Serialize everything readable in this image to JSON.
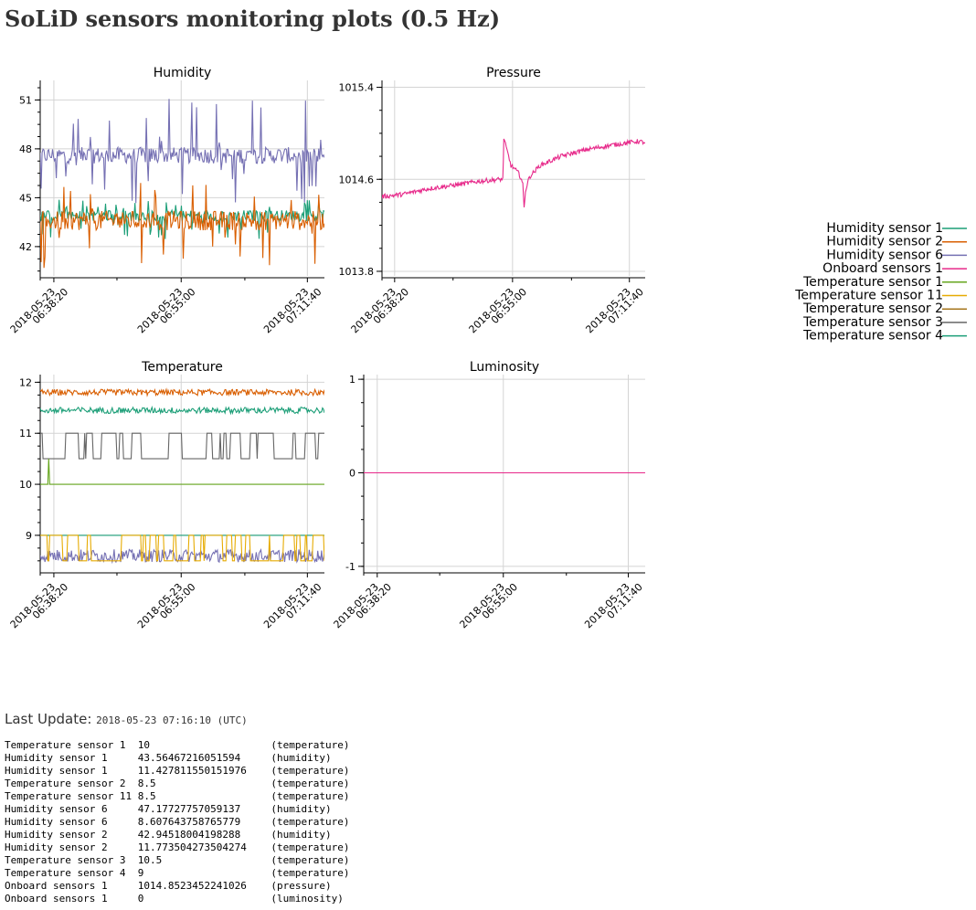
{
  "page": {
    "title": "SoLiD sensors monitoring plots (0.5 Hz)",
    "last_update_label": "Last Update:",
    "last_update_value": "2018-05-23 07:16:10 (UTC)"
  },
  "chart_data": [
    {
      "type": "line",
      "title": "Humidity",
      "ylim": [
        40.2,
        52.2
      ],
      "y_ticks": [
        "42",
        "45",
        "48",
        "51"
      ],
      "x_ticks": [
        [
          "2018-05-23",
          "06:38:20"
        ],
        [
          "2018-05-23",
          "06:55:00"
        ],
        [
          "2018-05-23",
          "07:11:40"
        ]
      ],
      "grid": true,
      "series": [
        {
          "name": "Humidity sensor 6",
          "color": "#7570b3",
          "base": 47.6,
          "noise": 0.5,
          "spikes_up": 3.5,
          "spikes_down": 3.0
        },
        {
          "name": "Humidity sensor 1",
          "color": "#1b9e77",
          "base": 43.9,
          "noise": 0.35,
          "spikes_up": 1.0,
          "spikes_down": 1.5
        },
        {
          "name": "Humidity sensor 2",
          "color": "#d95f02",
          "base": 43.6,
          "noise": 0.6,
          "spikes_up": 2.5,
          "spikes_down": 3.0
        }
      ]
    },
    {
      "type": "line",
      "title": "Pressure",
      "ylim": [
        1013.76,
        1015.46
      ],
      "y_ticks": [
        "1013.8",
        "1014.6",
        "1015.4"
      ],
      "x_ticks": [
        [
          "2018-05-23",
          "06:38:20"
        ],
        [
          "2018-05-23",
          "06:55:00"
        ],
        [
          "2018-05-23",
          "07:11:40"
        ]
      ],
      "grid": true,
      "series": [
        {
          "name": "Onboard sensors 1",
          "color": "#e7298a",
          "points": [
            [
              0.0,
              1014.45
            ],
            [
              0.08,
              1014.47
            ],
            [
              0.18,
              1014.52
            ],
            [
              0.28,
              1014.55
            ],
            [
              0.36,
              1014.58
            ],
            [
              0.45,
              1014.6
            ],
            [
              0.459,
              1014.6
            ],
            [
              0.463,
              1014.95
            ],
            [
              0.475,
              1014.85
            ],
            [
              0.49,
              1014.72
            ],
            [
              0.5,
              1014.7
            ],
            [
              0.52,
              1014.65
            ],
            [
              0.53,
              1014.6
            ],
            [
              0.535,
              1014.55
            ],
            [
              0.54,
              1014.35
            ],
            [
              0.545,
              1014.5
            ],
            [
              0.56,
              1014.62
            ],
            [
              0.6,
              1014.72
            ],
            [
              0.68,
              1014.8
            ],
            [
              0.78,
              1014.86
            ],
            [
              0.88,
              1014.9
            ],
            [
              0.97,
              1014.93
            ],
            [
              1.0,
              1014.92
            ]
          ]
        }
      ]
    },
    {
      "type": "line",
      "title": "Temperature",
      "ylim": [
        8.3,
        12.15
      ],
      "y_ticks": [
        "9",
        "10",
        "11",
        "12"
      ],
      "x_ticks": [
        [
          "2018-05-23",
          "06:38:20"
        ],
        [
          "2018-05-23",
          "06:55:00"
        ],
        [
          "2018-05-23",
          "07:11:40"
        ]
      ],
      "grid": true,
      "series": [
        {
          "name": "Humidity sensor 2",
          "color": "#d95f02",
          "base": 11.8,
          "noise": 0.06
        },
        {
          "name": "Humidity sensor 1",
          "color": "#1b9e77",
          "base": 11.45,
          "noise": 0.06
        },
        {
          "name": "Temperature sensor 3",
          "color": "#666666",
          "base": 10.5,
          "alt": 11.0
        },
        {
          "name": "Temperature sensor 1",
          "color": "#66a61e",
          "base": 10.0
        },
        {
          "name": "Temperature sensor 4",
          "color": "#1b9e77",
          "base": 9.0
        },
        {
          "name": "Humidity sensor 6",
          "color": "#7570b3",
          "base": 8.6
        },
        {
          "name": "Temperature sensor 11",
          "color": "#e6ab02",
          "base": 8.5,
          "alt": 9.0
        }
      ]
    },
    {
      "type": "line",
      "title": "Luminosity",
      "ylim": [
        -1.05,
        1.05
      ],
      "y_ticks": [
        "-1",
        "0",
        "1"
      ],
      "x_ticks": [
        [
          "2018-05-23",
          "06:38:20"
        ],
        [
          "2018-05-23",
          "06:55:00"
        ],
        [
          "2018-05-23",
          "07:11:40"
        ]
      ],
      "grid": true,
      "series": [
        {
          "name": "Onboard sensors 1",
          "color": "#e7298a",
          "constant": 0
        }
      ]
    }
  ],
  "legend": {
    "placement": "right",
    "entries": [
      {
        "name": "Humidity sensor 1",
        "color": "#1b9e77"
      },
      {
        "name": "Humidity sensor 2",
        "color": "#d95f02"
      },
      {
        "name": "Humidity sensor 6",
        "color": "#7570b3"
      },
      {
        "name": "Onboard sensors 1",
        "color": "#e7298a"
      },
      {
        "name": "Temperature sensor 1",
        "color": "#66a61e"
      },
      {
        "name": "Temperature sensor 11",
        "color": "#e6ab02"
      },
      {
        "name": "Temperature sensor 2",
        "color": "#a6761d"
      },
      {
        "name": "Temperature sensor 3",
        "color": "#666666"
      },
      {
        "name": "Temperature sensor 4",
        "color": "#1b9e77"
      }
    ]
  },
  "readings": [
    {
      "sensor": "Temperature sensor 1",
      "value": "10",
      "kind": "(temperature)"
    },
    {
      "sensor": "Humidity sensor 1",
      "value": "43.56467216051594",
      "kind": "(humidity)"
    },
    {
      "sensor": "Humidity sensor 1",
      "value": "11.427811550151976",
      "kind": "(temperature)"
    },
    {
      "sensor": "Temperature sensor 2",
      "value": "8.5",
      "kind": "(temperature)"
    },
    {
      "sensor": "Temperature sensor 11",
      "value": "8.5",
      "kind": "(temperature)"
    },
    {
      "sensor": "Humidity sensor 6",
      "value": "47.17727757059137",
      "kind": "(humidity)"
    },
    {
      "sensor": "Humidity sensor 6",
      "value": "8.607643758765779",
      "kind": "(temperature)"
    },
    {
      "sensor": "Humidity sensor 2",
      "value": "42.94518004198288",
      "kind": "(humidity)"
    },
    {
      "sensor": "Humidity sensor 2",
      "value": "11.773504273504274",
      "kind": "(temperature)"
    },
    {
      "sensor": "Temperature sensor 3",
      "value": "10.5",
      "kind": "(temperature)"
    },
    {
      "sensor": "Temperature sensor 4",
      "value": "9",
      "kind": "(temperature)"
    },
    {
      "sensor": "Onboard sensors 1",
      "value": "1014.8523452241026",
      "kind": "(pressure)"
    },
    {
      "sensor": "Onboard sensors 1",
      "value": "0",
      "kind": "(luminosity)"
    }
  ]
}
